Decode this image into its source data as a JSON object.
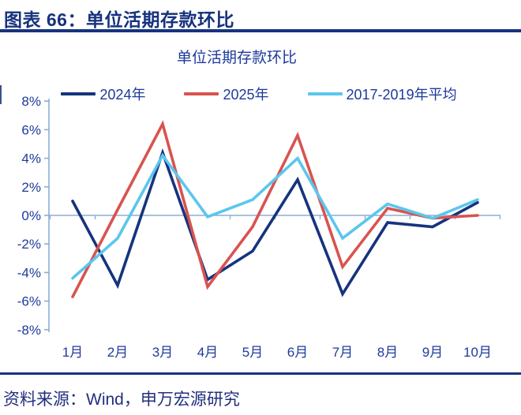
{
  "header": {
    "title": "图表 66：单位活期存款环比"
  },
  "footer": {
    "source": "资料来源：Wind，申万宏源研究"
  },
  "colors": {
    "navy_series": "#16337E",
    "red_series": "#D9534F",
    "cyan_series": "#5BC6EE",
    "axis_line": "#8BAED6",
    "blue_text": "#1E3A9C",
    "header_navy": "#17337E",
    "footer_text": "#232F7E"
  },
  "chart_data": {
    "type": "line",
    "title": "单位活期存款环比",
    "categories": [
      "1月",
      "2月",
      "3月",
      "4月",
      "5月",
      "6月",
      "7月",
      "8月",
      "9月",
      "10月"
    ],
    "series": [
      {
        "name": "2024年",
        "color": "#16337E",
        "values": [
          1.0,
          -4.9,
          4.4,
          -4.5,
          -2.5,
          2.5,
          -5.5,
          -0.5,
          -0.8,
          0.9
        ]
      },
      {
        "name": "2025年",
        "color": "#D9534F",
        "values": [
          -5.7,
          0.4,
          6.4,
          -5.0,
          -0.8,
          5.6,
          -3.6,
          0.5,
          -0.2,
          0.0
        ]
      },
      {
        "name": "2017-2019年平均",
        "color": "#5BC6EE",
        "values": [
          -4.4,
          -1.6,
          4.2,
          -0.1,
          1.1,
          4.0,
          -1.6,
          0.8,
          -0.2,
          1.1
        ]
      }
    ],
    "y_ticks": [
      "8%",
      "6%",
      "4%",
      "2%",
      "0%",
      "-2%",
      "-4%",
      "-6%",
      "-8%"
    ],
    "y_tick_values": [
      8,
      6,
      4,
      2,
      0,
      -2,
      -4,
      -6,
      -8
    ],
    "ylim": [
      -8,
      8
    ],
    "yunit": "%",
    "legend_position": "top",
    "grid": "zero-line-only",
    "xlabel": "",
    "ylabel": ""
  }
}
